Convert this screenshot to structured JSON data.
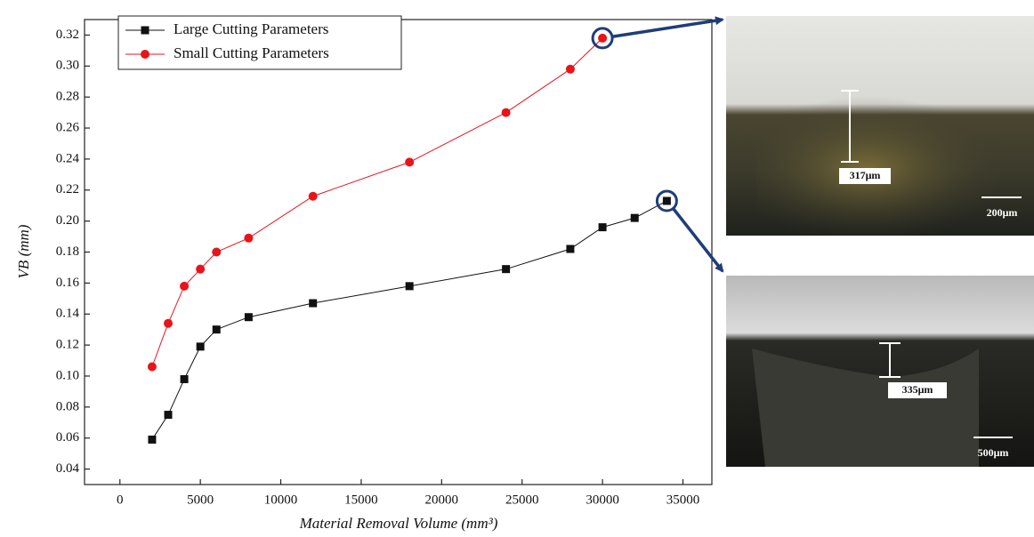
{
  "chart_data": {
    "type": "line",
    "xlabel": "Material Removal Volume (mm³)",
    "ylabel": "VB (mm)",
    "series": [
      {
        "name": "Large Cutting Parameters",
        "color": "#111111",
        "marker": "square",
        "x": [
          2000,
          3000,
          4000,
          5000,
          6000,
          8000,
          12000,
          18000,
          24000,
          28000,
          30000,
          32000,
          34000
        ],
        "values": [
          0.059,
          0.075,
          0.098,
          0.119,
          0.13,
          0.138,
          0.147,
          0.158,
          0.169,
          0.182,
          0.196,
          0.202,
          0.213
        ]
      },
      {
        "name": "Small Cutting Parameters",
        "color": "#e8141a",
        "marker": "circle",
        "x": [
          2000,
          3000,
          4000,
          5000,
          6000,
          8000,
          12000,
          18000,
          24000,
          28000,
          30000
        ],
        "values": [
          0.106,
          0.134,
          0.158,
          0.169,
          0.18,
          0.189,
          0.216,
          0.238,
          0.27,
          0.298,
          0.318
        ]
      }
    ],
    "xlim": [
      -2200,
      36800
    ],
    "xticks": [
      0,
      5000,
      10000,
      15000,
      20000,
      25000,
      30000,
      35000
    ],
    "ylim": [
      0.03,
      0.33
    ],
    "yticks": [
      0.04,
      0.06,
      0.08,
      {
        "value": 0.1,
        "label": "0.10"
      },
      0.12,
      0.14,
      0.16,
      0.18,
      {
        "value": 0.2,
        "label": "0.20"
      },
      0.22,
      0.24,
      0.26,
      0.28,
      {
        "value": 0.3,
        "label": "0.30"
      },
      0.32
    ],
    "legend": "upper left",
    "grid": false,
    "annotations": [
      "317μm",
      "200μm",
      "335μm",
      "500μm"
    ]
  }
}
